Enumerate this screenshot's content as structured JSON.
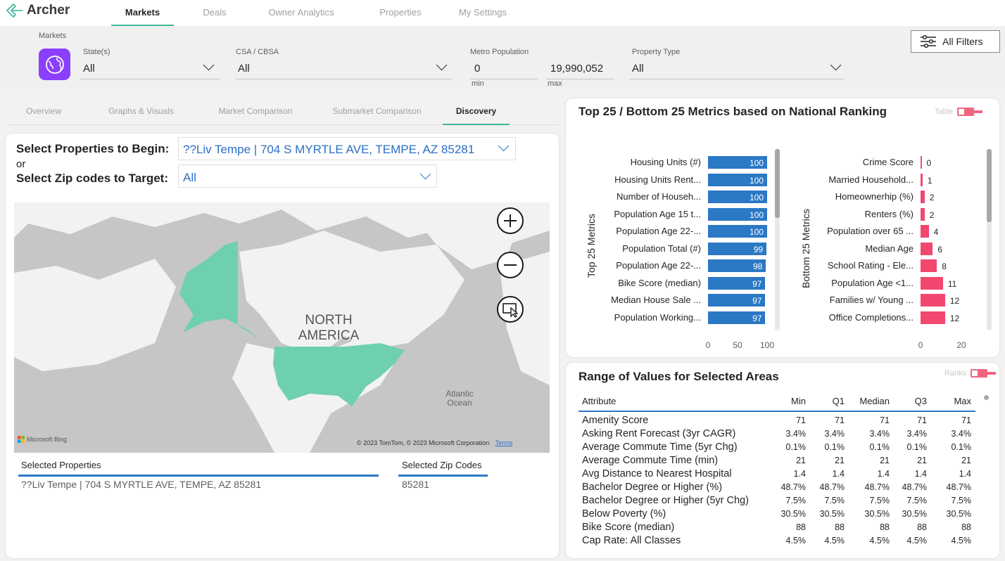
{
  "app": {
    "name": "Archer"
  },
  "nav": {
    "tabs": [
      "Markets",
      "Deals",
      "Owner Analytics",
      "Properties",
      "My Settings"
    ],
    "active": "Markets"
  },
  "filters": {
    "section_label": "Markets",
    "states": {
      "label": "State(s)",
      "value": "All"
    },
    "csa": {
      "label": "CSA / CBSA",
      "value": "All"
    },
    "metro_population": {
      "label": "Metro Population",
      "min_value": "0",
      "max_value": "19,990,052",
      "min_label": "min",
      "max_label": "max"
    },
    "property_type": {
      "label": "Property Type",
      "value": "All"
    },
    "all_filters_label": "All Filters"
  },
  "subtabs": [
    "Overview",
    "Graphs & Visuals",
    "Market Comparison",
    "Submarket Comparison",
    "Discovery"
  ],
  "discovery": {
    "select_properties_label": "Select Properties to Begin:",
    "or_label": "or",
    "select_zip_label": "Select Zip codes to Target:",
    "property_value": "??Liv Tempe | 704 S MYRTLE AVE, TEMPE, AZ 85281",
    "zip_value": "All",
    "map": {
      "continent_label_line1": "NORTH",
      "continent_label_line2": "AMERICA",
      "ocean_label_line1": "Atlantic",
      "ocean_label_line2": "Ocean",
      "brand": "Microsoft Bing",
      "copyright": "© 2023 TomTom, © 2023 Microsoft Corporation",
      "terms": "Terms"
    },
    "selected_properties_header": "Selected Properties",
    "selected_properties": [
      "??Liv Tempe | 704 S MYRTLE AVE, TEMPE, AZ 85281"
    ],
    "selected_zips_header": "Selected Zip Codes",
    "selected_zips": [
      "85281"
    ]
  },
  "ranking": {
    "title": "Top 25 / Bottom 25 Metrics based on National Ranking",
    "toggle_label": "Table",
    "top_axis_title": "Top 25 Metrics",
    "bottom_axis_title": "Bottom 25 Metrics",
    "colors": {
      "top": "#2b78c5",
      "bottom": "#f2476f"
    }
  },
  "chart_data": [
    {
      "type": "bar",
      "title": "Top 25 Metrics",
      "orientation": "horizontal",
      "categories": [
        "Housing Units (#)",
        "Housing Units Rent...",
        "Number of Househ...",
        "Population Age 15 t...",
        "Population Age 22-...",
        "Population Total (#)",
        "Population Age 22-...",
        "Bike Score (median)",
        "Median House Sale ...",
        "Population Working..."
      ],
      "values": [
        100,
        100,
        100,
        100,
        100,
        99,
        98,
        97,
        97,
        97
      ],
      "xlim": [
        0,
        100
      ],
      "xticks": [
        "0",
        "50",
        "100"
      ],
      "ylabel": "Top 25 Metrics"
    },
    {
      "type": "bar",
      "title": "Bottom 25 Metrics",
      "orientation": "horizontal",
      "categories": [
        "Crime Score",
        "Married Household...",
        "Homeownerhip (%)",
        "Renters (%)",
        "Population over 65 ...",
        "Median Age",
        "School Rating - Ele...",
        "Population Age <1...",
        "Families w/ Young ...",
        "Office Completions..."
      ],
      "values": [
        0,
        1,
        2,
        2,
        4,
        6,
        8,
        11,
        12,
        12
      ],
      "xlim": [
        0,
        20
      ],
      "xticks": [
        "0",
        "20"
      ],
      "ylabel": "Bottom 25 Metrics"
    }
  ],
  "range": {
    "title": "Range of Values for Selected Areas",
    "toggle_label": "Ranks",
    "columns": [
      "Attribute",
      "Min",
      "Q1",
      "Median",
      "Q3",
      "Max"
    ],
    "rows": [
      [
        "Amenity Score",
        "71",
        "71",
        "71",
        "71",
        "71"
      ],
      [
        "Asking Rent Forecast (3yr CAGR)",
        "3.4%",
        "3.4%",
        "3.4%",
        "3.4%",
        "3.4%"
      ],
      [
        "Average Commute Time (5yr Chg)",
        "0.1%",
        "0.1%",
        "0.1%",
        "0.1%",
        "0.1%"
      ],
      [
        "Average Commute Time (min)",
        "21",
        "21",
        "21",
        "21",
        "21"
      ],
      [
        "Avg Distance to Nearest Hospital",
        "1.4",
        "1.4",
        "1.4",
        "1.4",
        "1.4"
      ],
      [
        "Bachelor Degree or Higher (%)",
        "48.7%",
        "48.7%",
        "48.7%",
        "48.7%",
        "48.7%"
      ],
      [
        "Bachelor Degree or Higher (5yr Chg)",
        "7.5%",
        "7.5%",
        "7.5%",
        "7.5%",
        "7.5%"
      ],
      [
        "Below Poverty (%)",
        "30.5%",
        "30.5%",
        "30.5%",
        "30.5%",
        "30.5%"
      ],
      [
        "Bike Score (median)",
        "88",
        "88",
        "88",
        "88",
        "88"
      ],
      [
        "Cap Rate: All Classes",
        "4.5%",
        "4.5%",
        "4.5%",
        "4.5%",
        "4.5%"
      ]
    ]
  }
}
